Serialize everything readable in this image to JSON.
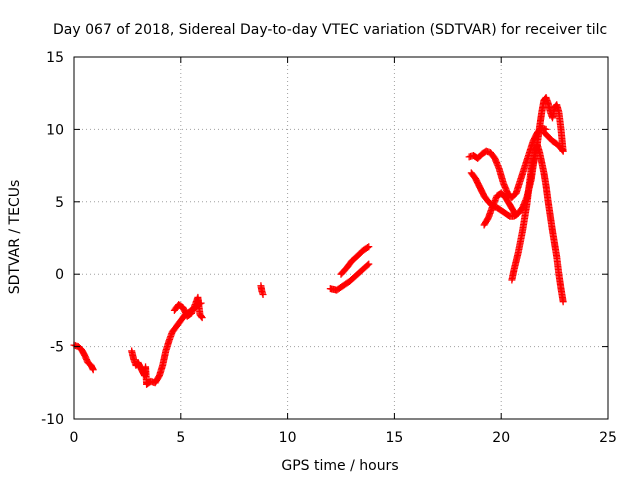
{
  "chart_data": {
    "type": "scatter",
    "title": "Day 067 of 2018, Sidereal Day-to-day VTEC variation (SDTVAR) for receiver tilc",
    "xlabel": "GPS time / hours",
    "ylabel": "SDTVAR / TECUs",
    "xlim": [
      0,
      25
    ],
    "ylim": [
      -10,
      15
    ],
    "xticks": [
      0,
      5,
      10,
      15,
      20,
      25
    ],
    "yticks": [
      -10,
      -5,
      0,
      5,
      10,
      15
    ],
    "grid": true,
    "marker": "plus",
    "color": "#ff0000",
    "series": [
      {
        "segments": [
          [
            [
              0.0,
              -4.9
            ],
            [
              0.2,
              -5.0
            ],
            [
              0.35,
              -5.2
            ],
            [
              0.5,
              -5.6
            ],
            [
              0.65,
              -6.1
            ],
            [
              0.8,
              -6.3
            ],
            [
              0.9,
              -6.6
            ]
          ],
          [
            [
              2.7,
              -5.3
            ],
            [
              2.8,
              -5.9
            ],
            [
              2.9,
              -6.3
            ],
            [
              3.0,
              -6.1
            ],
            [
              3.1,
              -6.4
            ],
            [
              3.2,
              -6.7
            ],
            [
              3.3,
              -7.0
            ],
            [
              3.35,
              -6.4
            ],
            [
              3.4,
              -7.6
            ]
          ],
          [
            [
              3.4,
              -7.6
            ],
            [
              3.6,
              -7.4
            ],
            [
              3.8,
              -7.5
            ],
            [
              4.0,
              -7.0
            ],
            [
              4.15,
              -6.3
            ],
            [
              4.3,
              -5.3
            ],
            [
              4.45,
              -4.6
            ],
            [
              4.6,
              -4.0
            ],
            [
              4.8,
              -3.6
            ],
            [
              5.0,
              -3.2
            ],
            [
              5.2,
              -2.8
            ],
            [
              5.4,
              -2.6
            ],
            [
              5.6,
              -2.4
            ],
            [
              5.8,
              -2.1
            ],
            [
              5.95,
              -2.0
            ]
          ],
          [
            [
              4.7,
              -2.5
            ],
            [
              4.9,
              -2.1
            ],
            [
              5.1,
              -2.3
            ],
            [
              5.3,
              -2.9
            ],
            [
              5.5,
              -2.7
            ],
            [
              5.7,
              -2.0
            ],
            [
              5.8,
              -1.6
            ],
            [
              5.9,
              -2.8
            ],
            [
              6.0,
              -3.0
            ]
          ],
          [
            [
              8.75,
              -0.8
            ],
            [
              8.8,
              -1.2
            ],
            [
              8.85,
              -1.4
            ]
          ],
          [
            [
              12.0,
              -1.0
            ],
            [
              12.3,
              -1.1
            ],
            [
              12.6,
              -0.8
            ],
            [
              12.9,
              -0.5
            ],
            [
              13.2,
              -0.1
            ],
            [
              13.5,
              0.3
            ],
            [
              13.8,
              0.7
            ]
          ],
          [
            [
              12.5,
              0.0
            ],
            [
              12.8,
              0.5
            ],
            [
              13.0,
              0.9
            ],
            [
              13.3,
              1.3
            ],
            [
              13.5,
              1.6
            ],
            [
              13.8,
              1.9
            ]
          ],
          [
            [
              18.5,
              8.1
            ],
            [
              18.7,
              8.2
            ],
            [
              18.9,
              8.0
            ],
            [
              19.1,
              8.3
            ],
            [
              19.3,
              8.5
            ],
            [
              19.5,
              8.4
            ],
            [
              19.7,
              8.0
            ],
            [
              19.9,
              7.3
            ],
            [
              20.1,
              6.3
            ],
            [
              20.3,
              5.6
            ],
            [
              20.5,
              5.3
            ],
            [
              20.7,
              5.6
            ],
            [
              20.9,
              6.5
            ],
            [
              21.1,
              7.4
            ],
            [
              21.3,
              8.3
            ],
            [
              21.5,
              9.2
            ],
            [
              21.7,
              9.8
            ],
            [
              21.9,
              10.1
            ],
            [
              22.1,
              10.0
            ]
          ],
          [
            [
              18.6,
              7.0
            ],
            [
              18.8,
              6.6
            ],
            [
              19.0,
              6.0
            ],
            [
              19.2,
              5.4
            ],
            [
              19.4,
              5.0
            ],
            [
              19.6,
              4.7
            ],
            [
              19.8,
              4.6
            ],
            [
              20.0,
              4.4
            ],
            [
              20.2,
              4.2
            ],
            [
              20.4,
              4.0
            ],
            [
              20.6,
              4.0
            ],
            [
              20.8,
              4.2
            ],
            [
              21.0,
              4.6
            ],
            [
              21.2,
              5.3
            ],
            [
              21.4,
              6.5
            ],
            [
              21.5,
              7.5
            ],
            [
              21.6,
              8.3
            ],
            [
              21.7,
              9.1
            ],
            [
              21.8,
              10.2
            ],
            [
              21.9,
              11.2
            ],
            [
              22.0,
              12.0
            ],
            [
              22.1,
              12.2
            ],
            [
              22.2,
              11.8
            ],
            [
              22.3,
              11.2
            ],
            [
              22.4,
              10.8
            ],
            [
              22.5,
              11.5
            ],
            [
              22.6,
              11.7
            ],
            [
              22.7,
              11.2
            ],
            [
              22.8,
              10.0
            ],
            [
              22.9,
              8.5
            ]
          ],
          [
            [
              19.2,
              3.4
            ],
            [
              19.4,
              3.9
            ],
            [
              19.6,
              4.7
            ],
            [
              19.8,
              5.4
            ],
            [
              20.0,
              5.6
            ],
            [
              20.2,
              5.3
            ],
            [
              20.4,
              4.8
            ],
            [
              20.6,
              4.3
            ],
            [
              20.7,
              4.1
            ]
          ],
          [
            [
              20.5,
              -0.4
            ],
            [
              20.6,
              0.3
            ],
            [
              20.8,
              1.5
            ],
            [
              21.0,
              3.0
            ],
            [
              21.2,
              4.8
            ],
            [
              21.3,
              6.0
            ],
            [
              21.4,
              7.2
            ],
            [
              21.5,
              7.8
            ],
            [
              21.6,
              8.6
            ],
            [
              21.7,
              8.9
            ],
            [
              21.8,
              8.4
            ],
            [
              21.9,
              7.7
            ],
            [
              22.0,
              7.0
            ],
            [
              22.1,
              6.1
            ],
            [
              22.2,
              5.0
            ],
            [
              22.3,
              4.0
            ],
            [
              22.4,
              3.0
            ],
            [
              22.5,
              2.1
            ],
            [
              22.6,
              1.2
            ],
            [
              22.7,
              0.0
            ],
            [
              22.8,
              -1.0
            ],
            [
              22.9,
              -1.9
            ]
          ],
          [
            [
              22.0,
              9.8
            ],
            [
              22.2,
              9.5
            ],
            [
              22.4,
              9.2
            ],
            [
              22.6,
              9.0
            ],
            [
              22.8,
              8.7
            ],
            [
              22.9,
              8.5
            ]
          ]
        ]
      }
    ]
  }
}
